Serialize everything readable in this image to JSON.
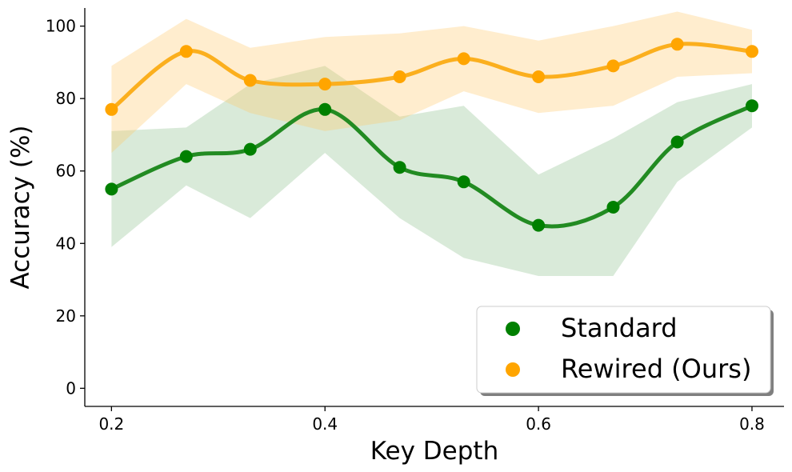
{
  "chart_data": {
    "type": "line",
    "xlabel": "Key Depth",
    "ylabel": "Accuracy (%)",
    "xlim": [
      0.175,
      0.83
    ],
    "ylim": [
      -5,
      105
    ],
    "xticks": [
      0.2,
      0.4,
      0.6,
      0.8
    ],
    "xtick_labels": [
      "0.2",
      "0.4",
      "0.6",
      "0.8"
    ],
    "yticks": [
      0,
      20,
      40,
      60,
      80,
      100
    ],
    "ytick_labels": [
      "0",
      "20",
      "40",
      "60",
      "80",
      "100"
    ],
    "grid": false,
    "legend_position": "lower-right",
    "x": [
      0.2,
      0.27,
      0.33,
      0.4,
      0.47,
      0.53,
      0.6,
      0.67,
      0.73,
      0.8
    ],
    "series": [
      {
        "name": "Standard",
        "color": "#008000",
        "line_color": "#228B22",
        "band_color": "#2e8b2e",
        "values": [
          55,
          64,
          66,
          77,
          61,
          57,
          45,
          50,
          68,
          78
        ],
        "lower": [
          39,
          56,
          47,
          65,
          47,
          36,
          31,
          31,
          57,
          72
        ],
        "upper": [
          71,
          72,
          84,
          89,
          75,
          78,
          59,
          69,
          79,
          84
        ]
      },
      {
        "name": "Rewired (Ours)",
        "color": "#FFA500",
        "line_color": "#FBAF1E",
        "band_color": "#ffc766",
        "values": [
          77,
          93,
          85,
          84,
          86,
          91,
          86,
          89,
          95,
          93
        ],
        "lower": [
          65,
          84,
          76,
          71,
          74,
          82,
          76,
          78,
          86,
          87
        ],
        "upper": [
          89,
          102,
          94,
          97,
          98,
          100,
          96,
          100,
          104,
          99
        ]
      }
    ]
  }
}
